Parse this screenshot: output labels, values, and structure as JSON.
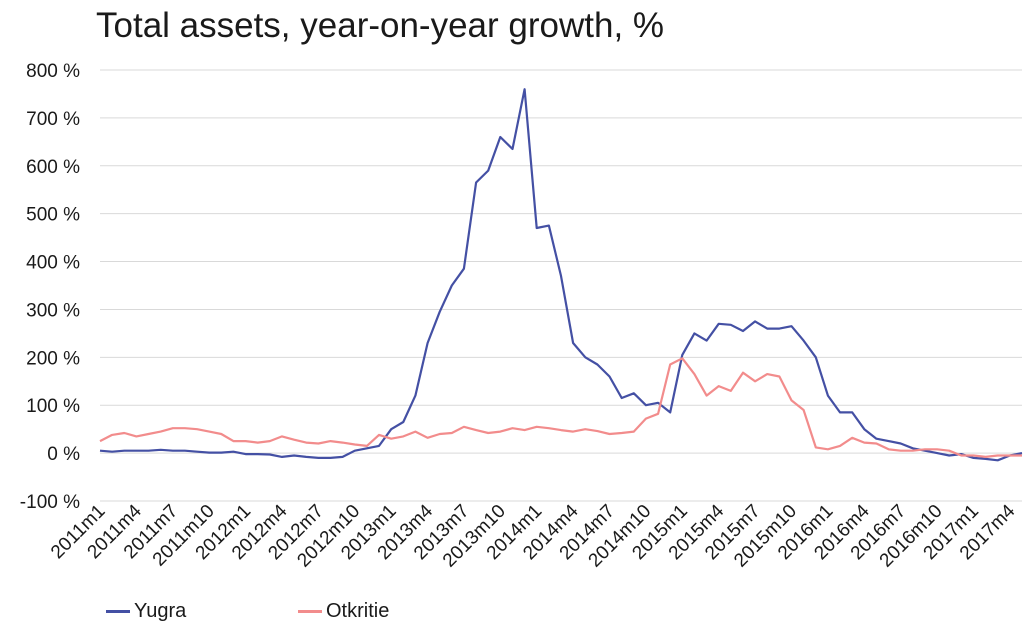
{
  "chart_data": {
    "type": "line",
    "title": "Total assets, year-on-year growth, %",
    "ylim": [
      -100,
      800
    ],
    "yticks": [
      "-100 %",
      "0 %",
      "100 %",
      "200 %",
      "300 %",
      "400 %",
      "500 %",
      "600 %",
      "700 %",
      "800 %"
    ],
    "ytick_values": [
      -100,
      0,
      100,
      200,
      300,
      400,
      500,
      600,
      700,
      800
    ],
    "grid": true,
    "legend_position": "bottom-left",
    "x": [
      "2011m1",
      "2011m2",
      "2011m3",
      "2011m4",
      "2011m5",
      "2011m6",
      "2011m7",
      "2011m8",
      "2011m9",
      "2011m10",
      "2011m11",
      "2011m12",
      "2012m1",
      "2012m2",
      "2012m3",
      "2012m4",
      "2012m5",
      "2012m6",
      "2012m7",
      "2012m8",
      "2012m9",
      "2012m10",
      "2012m11",
      "2012m12",
      "2013m1",
      "2013m2",
      "2013m3",
      "2013m4",
      "2013m5",
      "2013m6",
      "2013m7",
      "2013m8",
      "2013m9",
      "2013m10",
      "2013m11",
      "2013m12",
      "2014m1",
      "2014m2",
      "2014m3",
      "2014m4",
      "2014m5",
      "2014m6",
      "2014m7",
      "2014m8",
      "2014m9",
      "2014m10",
      "2014m11",
      "2014m12",
      "2015m1",
      "2015m2",
      "2015m3",
      "2015m4",
      "2015m5",
      "2015m6",
      "2015m7",
      "2015m8",
      "2015m9",
      "2015m10",
      "2015m11",
      "2015m12",
      "2016m1",
      "2016m2",
      "2016m3",
      "2016m4",
      "2016m5",
      "2016m6",
      "2016m7",
      "2016m8",
      "2016m9",
      "2016m10",
      "2016m11",
      "2016m12",
      "2017m1",
      "2017m2",
      "2017m3",
      "2017m4",
      "2017m5"
    ],
    "xtick_labels": [
      "2011m1",
      "2011m4",
      "2011m7",
      "2011m10",
      "2012m1",
      "2012m4",
      "2012m7",
      "2012m10",
      "2013m1",
      "2013m4",
      "2013m7",
      "2013m10",
      "2014m1",
      "2014m4",
      "2014m7",
      "2014m10",
      "2015m1",
      "2015m4",
      "2015m7",
      "2015m10",
      "2016m1",
      "2016m4",
      "2016m7",
      "2016m10",
      "2017m1",
      "2017m4"
    ],
    "series": [
      {
        "name": "Yugra",
        "color": "#4450a4",
        "values": [
          5,
          3,
          5,
          5,
          5,
          7,
          5,
          5,
          3,
          1,
          1,
          3,
          -2,
          -2,
          -3,
          -8,
          -5,
          -8,
          -10,
          -10,
          -8,
          5,
          10,
          15,
          50,
          65,
          120,
          230,
          295,
          350,
          385,
          565,
          590,
          660,
          635,
          760,
          470,
          475,
          370,
          230,
          200,
          185,
          160,
          115,
          125,
          100,
          105,
          85,
          205,
          250,
          235,
          270,
          268,
          255,
          275,
          260,
          260,
          265,
          235,
          200,
          120,
          85,
          85,
          50,
          30,
          25,
          20,
          10,
          5,
          0,
          -5,
          -2,
          -10,
          -12,
          -15,
          -5,
          0
        ]
      },
      {
        "name": "Otkritie",
        "color": "#f28c8c",
        "values": [
          25,
          38,
          42,
          35,
          40,
          45,
          52,
          52,
          50,
          45,
          40,
          25,
          25,
          22,
          25,
          35,
          28,
          22,
          20,
          25,
          22,
          18,
          15,
          38,
          30,
          35,
          45,
          32,
          40,
          42,
          55,
          48,
          42,
          45,
          52,
          48,
          55,
          52,
          48,
          45,
          50,
          46,
          40,
          42,
          45,
          72,
          82,
          185,
          198,
          165,
          120,
          140,
          130,
          168,
          150,
          165,
          160,
          110,
          90,
          12,
          8,
          15,
          32,
          22,
          20,
          8,
          5,
          5,
          8,
          8,
          5,
          -5,
          -5,
          -8,
          -5,
          -5,
          -5
        ]
      }
    ]
  }
}
